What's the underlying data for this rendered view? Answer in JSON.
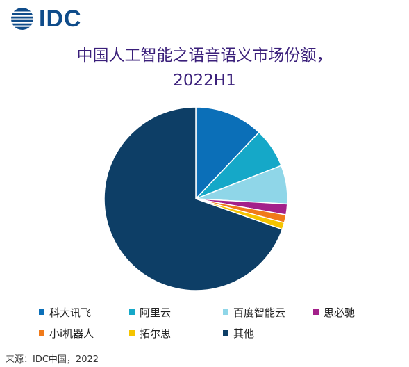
{
  "brand": {
    "logo_text": "IDC",
    "logo_color": "#0f4c8a"
  },
  "chart_data": {
    "type": "pie",
    "title_line1": "中国人工智能之语音语义市场份额，",
    "title_line2": "2022H1",
    "categories": [
      "科大讯飞",
      "阿里云",
      "百度智能云",
      "思必驰",
      "小i机器人",
      "拓尔思",
      "其他"
    ],
    "values": [
      12.1,
      7.0,
      6.8,
      1.9,
      1.4,
      1.2,
      69.6
    ],
    "colors": [
      "#0b6fb8",
      "#15a8c8",
      "#8fd6e8",
      "#a3208a",
      "#f07a1a",
      "#f5c400",
      "#0d3e66"
    ],
    "legend_position": "bottom",
    "source": "来源：IDC中国，2022"
  }
}
